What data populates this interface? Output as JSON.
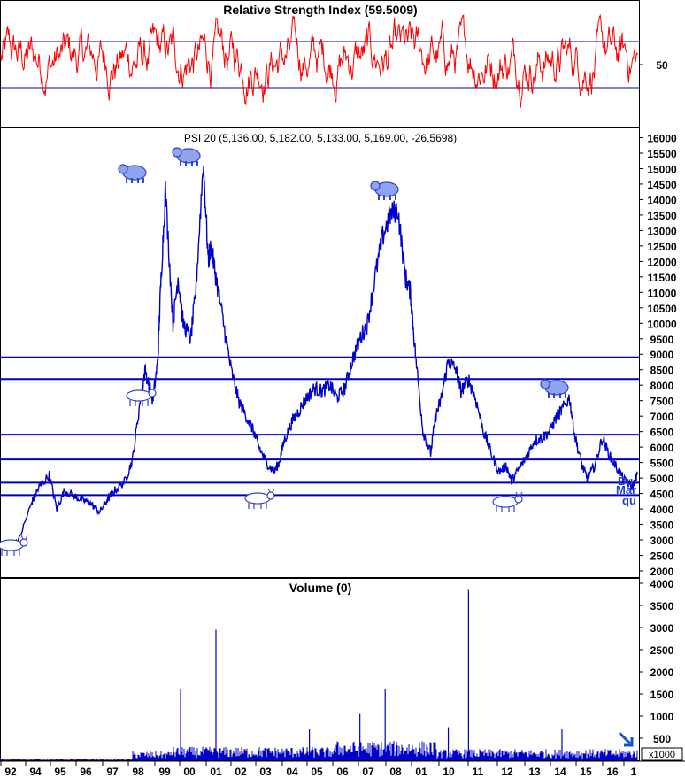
{
  "chart_data": [
    {
      "type": "line",
      "title": "Relative Strength Index (59.5009)",
      "y_ticks": [
        50
      ],
      "ylim": [
        0,
        100
      ],
      "reference_levels": [
        70,
        30
      ],
      "grid": false,
      "colors": {
        "line": "#ff0000",
        "reference": "#00007a"
      }
    },
    {
      "type": "line",
      "title": "PSI 20 (5,136.00, 5,182.00, 5,133.00, 5,169.00, -26.5698)",
      "x_ticks": [
        "92",
        "94",
        "95",
        "96",
        "97",
        "98",
        "99",
        "00",
        "01",
        "02",
        "03",
        "04",
        "05",
        "06",
        "07",
        "08",
        "01",
        "10",
        "11",
        "12",
        "13",
        "14",
        "15",
        "16",
        "1"
      ],
      "y_ticks": [
        2000,
        2500,
        3000,
        3500,
        4000,
        4500,
        5000,
        5500,
        6000,
        6500,
        7000,
        7500,
        8000,
        8500,
        9000,
        9500,
        10000,
        10500,
        11000,
        11500,
        12000,
        12500,
        13000,
        13500,
        14000,
        14500,
        15000,
        15500,
        16000
      ],
      "ylim": [
        1800,
        16300
      ],
      "x": [
        1992.0,
        1992.5,
        1993.0,
        1993.3,
        1993.7,
        1994.0,
        1994.3,
        1994.7,
        1995.0,
        1995.3,
        1995.7,
        1996.0,
        1996.3,
        1996.7,
        1997.0,
        1997.3,
        1997.5,
        1997.8,
        1998.0,
        1998.1,
        1998.3,
        1998.6,
        1998.8,
        1999.0,
        1999.3,
        1999.5,
        1999.8,
        2000.0,
        2000.1,
        2000.3,
        2000.6,
        2000.9,
        2001.2,
        2001.5,
        2001.8,
        2002.0,
        2002.3,
        2002.6,
        2002.8,
        2003.0,
        2003.3,
        2003.6,
        2003.9,
        2004.2,
        2004.5,
        2004.8,
        2005.1,
        2005.4,
        2005.7,
        2006.0,
        2006.3,
        2006.6,
        2006.9,
        2007.2,
        2007.5,
        2007.8,
        2008.0,
        2008.2,
        2008.5,
        2008.8,
        2009.0,
        2009.2,
        2009.5,
        2009.8,
        2010.0,
        2010.3,
        2010.6,
        2010.9,
        2011.2,
        2011.5,
        2011.8,
        2012.0,
        2012.3,
        2012.6,
        2012.9,
        2013.2,
        2013.5,
        2013.8,
        2014.0,
        2014.3,
        2014.5,
        2014.8,
        2015.0,
        2015.3,
        2015.6,
        2015.9,
        2016.2,
        2016.5,
        2016.8,
        2017.0
      ],
      "values": [
        2800,
        3000,
        4200,
        4700,
        5100,
        4000,
        4600,
        4400,
        4300,
        4200,
        3900,
        4300,
        4600,
        4900,
        5600,
        7500,
        8500,
        7500,
        8800,
        11000,
        14300,
        10000,
        11500,
        10000,
        9500,
        11000,
        15200,
        12000,
        12500,
        11500,
        10000,
        8500,
        7500,
        7000,
        6500,
        6000,
        5500,
        5200,
        5500,
        6200,
        6800,
        7200,
        7600,
        7900,
        7800,
        8000,
        7600,
        7900,
        8800,
        9500,
        10000,
        11500,
        12800,
        13500,
        13700,
        11500,
        11000,
        9000,
        6500,
        5800,
        7000,
        7500,
        8800,
        8500,
        7800,
        8200,
        7500,
        6500,
        5800,
        5200,
        5400,
        4900,
        5300,
        5700,
        6200,
        6300,
        6500,
        7000,
        7200,
        7600,
        6400,
        5400,
        5000,
        5400,
        6300,
        5700,
        5300,
        4900,
        4700,
        5169
      ],
      "reference_levels": [
        8900,
        8200,
        6400,
        5600,
        4850,
        4450
      ],
      "overlay_text": [
        "Bu",
        "Mar",
        "qu"
      ],
      "grid": false,
      "colors": {
        "line": "#0000cc",
        "reference": "#0000bb",
        "markers": "#3344cc"
      }
    },
    {
      "type": "bar",
      "title": "Volume (0)",
      "y_ticks": [
        500,
        1000,
        1500,
        2000,
        2500,
        3000,
        3500,
        4000
      ],
      "ylim": [
        0,
        4100
      ],
      "unit_label": "x1000",
      "spikes": [
        {
          "x": 1998.9,
          "value": 1600
        },
        {
          "x": 2000.3,
          "value": 2950
        },
        {
          "x": 2004.0,
          "value": 700
        },
        {
          "x": 2006.0,
          "value": 1050
        },
        {
          "x": 2007.0,
          "value": 1600
        },
        {
          "x": 2009.5,
          "value": 750
        },
        {
          "x": 2010.3,
          "value": 3850
        },
        {
          "x": 2014.0,
          "value": 700
        }
      ],
      "grid": false,
      "colors": {
        "bars": "#0000cc"
      }
    }
  ],
  "markers": {
    "bull_icons": 4,
    "bear_icons": 4
  }
}
